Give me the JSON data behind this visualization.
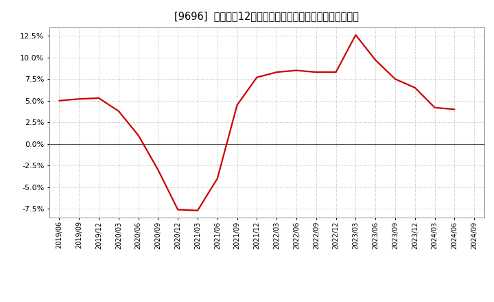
{
  "title": "[9696]  売上高の12か月移動合計の対前年同期増減率の推移",
  "line_color": "#cc0000",
  "background_color": "#ffffff",
  "plot_bg_color": "#ffffff",
  "grid_color": "#aaaaaa",
  "zero_line_color": "#555555",
  "ylim": [
    -0.085,
    0.135
  ],
  "yticks": [
    -0.075,
    -0.05,
    -0.025,
    0.0,
    0.025,
    0.05,
    0.075,
    0.1,
    0.125
  ],
  "dates": [
    "2019/06",
    "2019/09",
    "2019/12",
    "2020/03",
    "2020/06",
    "2020/09",
    "2020/12",
    "2021/03",
    "2021/06",
    "2021/09",
    "2021/12",
    "2022/03",
    "2022/06",
    "2022/09",
    "2022/12",
    "2023/03",
    "2023/06",
    "2023/09",
    "2023/12",
    "2024/03",
    "2024/06"
  ],
  "values": [
    0.05,
    0.052,
    0.053,
    0.038,
    0.01,
    -0.03,
    -0.076,
    -0.077,
    -0.04,
    0.045,
    0.077,
    0.083,
    0.085,
    0.083,
    0.083,
    0.126,
    0.097,
    0.075,
    0.065,
    0.042,
    0.04
  ],
  "xtick_labels": [
    "2019/06",
    "2019/09",
    "2019/12",
    "2020/03",
    "2020/06",
    "2020/09",
    "2020/12",
    "2021/03",
    "2021/06",
    "2021/09",
    "2021/12",
    "2022/03",
    "2022/06",
    "2022/09",
    "2022/12",
    "2023/03",
    "2023/06",
    "2023/09",
    "2023/12",
    "2024/03",
    "2024/06",
    "2024/09"
  ],
  "title_bracket_color": "#333333",
  "title_fontsize": 10.5,
  "tick_fontsize": 8,
  "linewidth": 1.6
}
